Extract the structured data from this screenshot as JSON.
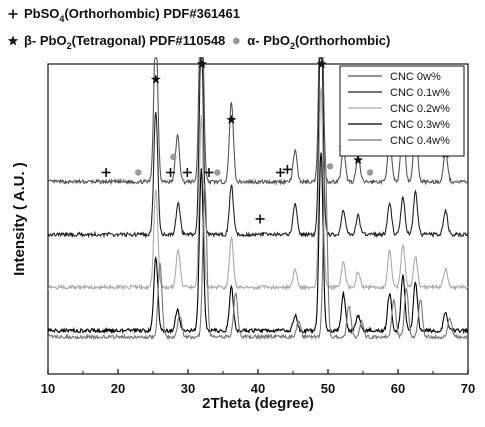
{
  "phase_legend": [
    {
      "marker": "plus-icon",
      "text_parts": [
        "PbSO",
        "4",
        "(Orthorhombic) PDF#361461"
      ]
    },
    {
      "marker": "star-icon",
      "text_parts": [
        "β- PbO",
        "2",
        "(Tetragonal) PDF#110548"
      ]
    },
    {
      "marker": "circle-icon",
      "text_parts": [
        "α- PbO",
        "2",
        "(Orthorhombic)"
      ]
    }
  ],
  "marker_colors": {
    "plus": "#111111",
    "star": "#111111",
    "circle": "#999999"
  },
  "chart_data": {
    "type": "line",
    "xlabel": "2Theta (degree)",
    "ylabel": "Intensity ( A.U. )",
    "xlim": [
      10,
      70
    ],
    "xticks": [
      10,
      20,
      30,
      40,
      50,
      60,
      70
    ],
    "y_ticks_shown": false,
    "grid": false,
    "legend_placement": "top-right",
    "series": [
      {
        "name": "CNC 0w%",
        "color": "#555555",
        "baseline": 0.62,
        "peaks": [
          [
            25.4,
            0.5
          ],
          [
            28.5,
            0.15
          ],
          [
            31.9,
            0.75
          ],
          [
            36.2,
            0.26
          ],
          [
            45.3,
            0.1
          ],
          [
            49.0,
            0.74
          ],
          [
            52.2,
            0.1
          ],
          [
            54.3,
            0.08
          ],
          [
            58.8,
            0.14
          ],
          [
            60.7,
            0.22
          ],
          [
            62.5,
            0.18
          ],
          [
            66.8,
            0.1
          ]
        ]
      },
      {
        "name": "CNC 0.1w%",
        "color": "#222222",
        "baseline": 0.45,
        "peaks": [
          [
            25.4,
            0.4
          ],
          [
            28.6,
            0.1
          ],
          [
            31.9,
            0.65
          ],
          [
            36.2,
            0.16
          ],
          [
            45.3,
            0.1
          ],
          [
            49.0,
            0.72
          ],
          [
            52.2,
            0.08
          ],
          [
            54.3,
            0.06
          ],
          [
            58.8,
            0.1
          ],
          [
            60.7,
            0.12
          ],
          [
            62.5,
            0.14
          ],
          [
            66.8,
            0.08
          ]
        ]
      },
      {
        "name": "CNC 0.2w%",
        "color": "#aaaaaa",
        "baseline": 0.28,
        "peaks": [
          [
            25.4,
            0.32
          ],
          [
            28.6,
            0.12
          ],
          [
            31.9,
            0.55
          ],
          [
            36.2,
            0.16
          ],
          [
            45.3,
            0.06
          ],
          [
            49.0,
            0.65
          ],
          [
            52.2,
            0.08
          ],
          [
            54.3,
            0.05
          ],
          [
            58.8,
            0.12
          ],
          [
            60.7,
            0.14
          ],
          [
            62.5,
            0.1
          ],
          [
            66.8,
            0.06
          ]
        ]
      },
      {
        "name": "CNC 0.3w%",
        "color": "#000000",
        "baseline": 0.14,
        "peaks": [
          [
            25.4,
            0.24
          ],
          [
            28.5,
            0.07
          ],
          [
            31.9,
            0.52
          ],
          [
            36.2,
            0.14
          ],
          [
            45.3,
            0.05
          ],
          [
            49.0,
            0.58
          ],
          [
            52.2,
            0.12
          ],
          [
            54.3,
            0.05
          ],
          [
            58.8,
            0.12
          ],
          [
            60.7,
            0.18
          ],
          [
            62.5,
            0.16
          ],
          [
            66.8,
            0.06
          ]
        ]
      },
      {
        "name": "CNC 0.4w%",
        "color": "#777777",
        "baseline": 0.12,
        "peaks": [
          [
            26.0,
            0.24
          ],
          [
            28.8,
            0.07
          ],
          [
            32.4,
            0.5
          ],
          [
            36.8,
            0.14
          ],
          [
            45.8,
            0.05
          ],
          [
            49.6,
            0.56
          ],
          [
            53.0,
            0.1
          ],
          [
            54.8,
            0.05
          ],
          [
            59.4,
            0.12
          ],
          [
            61.2,
            0.16
          ],
          [
            63.2,
            0.12
          ],
          [
            67.4,
            0.06
          ]
        ]
      }
    ],
    "peak_annotations": [
      {
        "type": "plus",
        "x": 18.3,
        "level": 0.65
      },
      {
        "type": "circle",
        "x": 22.9,
        "level": 0.65
      },
      {
        "type": "star",
        "x": 25.4,
        "level": 0.95
      },
      {
        "type": "circle",
        "x": 27.9,
        "level": 0.7
      },
      {
        "type": "plus",
        "x": 27.5,
        "level": 0.65
      },
      {
        "type": "plus",
        "x": 29.9,
        "level": 0.65
      },
      {
        "type": "star",
        "x": 32.0,
        "level": 1.0
      },
      {
        "type": "plus",
        "x": 33.0,
        "level": 0.65
      },
      {
        "type": "circle",
        "x": 34.2,
        "level": 0.65
      },
      {
        "type": "star",
        "x": 36.2,
        "level": 0.82
      },
      {
        "type": "plus",
        "x": 40.3,
        "level": 0.5
      },
      {
        "type": "plus",
        "x": 43.2,
        "level": 0.65
      },
      {
        "type": "plus",
        "x": 44.2,
        "level": 0.66
      },
      {
        "type": "star",
        "x": 49.1,
        "level": 1.0
      },
      {
        "type": "circle",
        "x": 50.3,
        "level": 0.67
      },
      {
        "type": "star",
        "x": 52.2,
        "level": 0.73
      },
      {
        "type": "star",
        "x": 54.3,
        "level": 0.69
      },
      {
        "type": "circle",
        "x": 56.0,
        "level": 0.65
      },
      {
        "type": "star",
        "x": 58.8,
        "level": 0.75
      },
      {
        "type": "star",
        "x": 60.7,
        "level": 0.78
      },
      {
        "type": "star",
        "x": 62.5,
        "level": 0.75
      },
      {
        "type": "star",
        "x": 66.8,
        "level": 0.71
      }
    ]
  }
}
